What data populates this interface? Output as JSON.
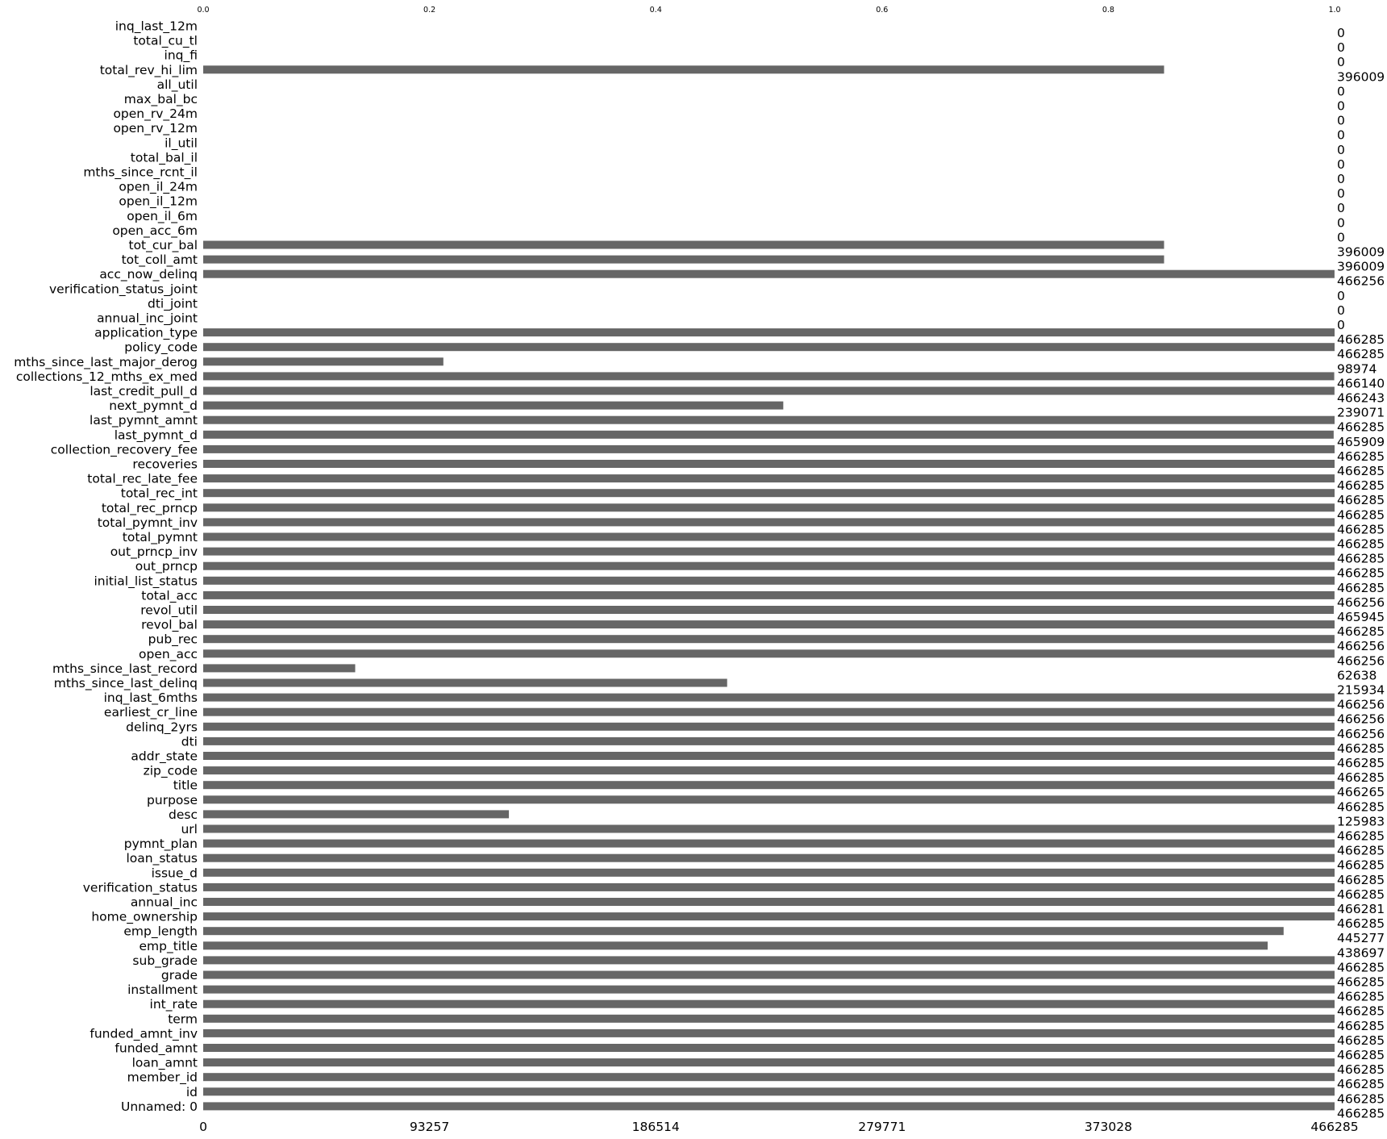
{
  "chart_data": {
    "type": "bar",
    "orientation": "horizontal",
    "bar_color": "#666666",
    "total": 466285,
    "top_ticks": [
      "0.0",
      "0.2",
      "0.4",
      "0.6",
      "0.8",
      "1.0"
    ],
    "bottom_ticks": [
      "0",
      "93257",
      "186514",
      "279771",
      "373028",
      "466285"
    ],
    "xlim": [
      0,
      466285
    ],
    "grid": false,
    "categories": [
      "inq_last_12m",
      "total_cu_tl",
      "inq_fi",
      "total_rev_hi_lim",
      "all_util",
      "max_bal_bc",
      "open_rv_24m",
      "open_rv_12m",
      "il_util",
      "total_bal_il",
      "mths_since_rcnt_il",
      "open_il_24m",
      "open_il_12m",
      "open_il_6m",
      "open_acc_6m",
      "tot_cur_bal",
      "tot_coll_amt",
      "acc_now_delinq",
      "verification_status_joint",
      "dti_joint",
      "annual_inc_joint",
      "application_type",
      "policy_code",
      "mths_since_last_major_derog",
      "collections_12_mths_ex_med",
      "last_credit_pull_d",
      "next_pymnt_d",
      "last_pymnt_amnt",
      "last_pymnt_d",
      "collection_recovery_fee",
      "recoveries",
      "total_rec_late_fee",
      "total_rec_int",
      "total_rec_prncp",
      "total_pymnt_inv",
      "total_pymnt",
      "out_prncp_inv",
      "out_prncp",
      "initial_list_status",
      "total_acc",
      "revol_util",
      "revol_bal",
      "pub_rec",
      "open_acc",
      "mths_since_last_record",
      "mths_since_last_delinq",
      "inq_last_6mths",
      "earliest_cr_line",
      "delinq_2yrs",
      "dti",
      "addr_state",
      "zip_code",
      "title",
      "purpose",
      "desc",
      "url",
      "pymnt_plan",
      "loan_status",
      "issue_d",
      "verification_status",
      "annual_inc",
      "home_ownership",
      "emp_length",
      "emp_title",
      "sub_grade",
      "grade",
      "installment",
      "int_rate",
      "term",
      "funded_amnt_inv",
      "funded_amnt",
      "loan_amnt",
      "member_id",
      "id",
      "Unnamed: 0"
    ],
    "values": [
      0,
      0,
      0,
      396009,
      0,
      0,
      0,
      0,
      0,
      0,
      0,
      0,
      0,
      0,
      0,
      396009,
      396009,
      466256,
      0,
      0,
      0,
      466285,
      466285,
      98974,
      466140,
      466243,
      239071,
      466285,
      465909,
      466285,
      466285,
      466285,
      466285,
      466285,
      466285,
      466285,
      466285,
      466285,
      466285,
      466256,
      465945,
      466285,
      466256,
      466256,
      62638,
      215934,
      466256,
      466256,
      466256,
      466285,
      466285,
      466285,
      466265,
      466285,
      125983,
      466285,
      466285,
      466285,
      466285,
      466285,
      466281,
      466285,
      445277,
      438697,
      466285,
      466285,
      466285,
      466285,
      466285,
      466285,
      466285,
      466285,
      466285,
      466285,
      466285
    ]
  }
}
